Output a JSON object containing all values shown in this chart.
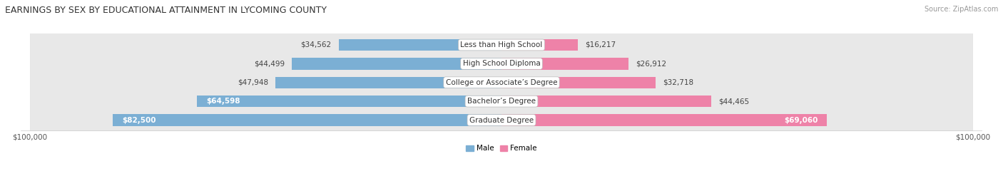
{
  "title": "EARNINGS BY SEX BY EDUCATIONAL ATTAINMENT IN LYCOMING COUNTY",
  "source": "Source: ZipAtlas.com",
  "categories": [
    "Less than High School",
    "High School Diploma",
    "College or Associate’s Degree",
    "Bachelor’s Degree",
    "Graduate Degree"
  ],
  "male_values": [
    34562,
    44499,
    47948,
    64598,
    82500
  ],
  "female_values": [
    16217,
    26912,
    32718,
    44465,
    69060
  ],
  "male_color": "#7BAFD4",
  "female_color": "#EE82A8",
  "row_bg_color": "#E8E8E8",
  "row_alt_bg_color": "#DCDCDC",
  "max_value": 100000,
  "xlabel_left": "$100,000",
  "xlabel_right": "$100,000",
  "legend_male": "Male",
  "legend_female": "Female",
  "title_fontsize": 9,
  "source_fontsize": 7,
  "label_fontsize": 7.5,
  "value_fontsize": 7.5,
  "axis_label_fontsize": 7.5,
  "inside_label_threshold": 55000
}
